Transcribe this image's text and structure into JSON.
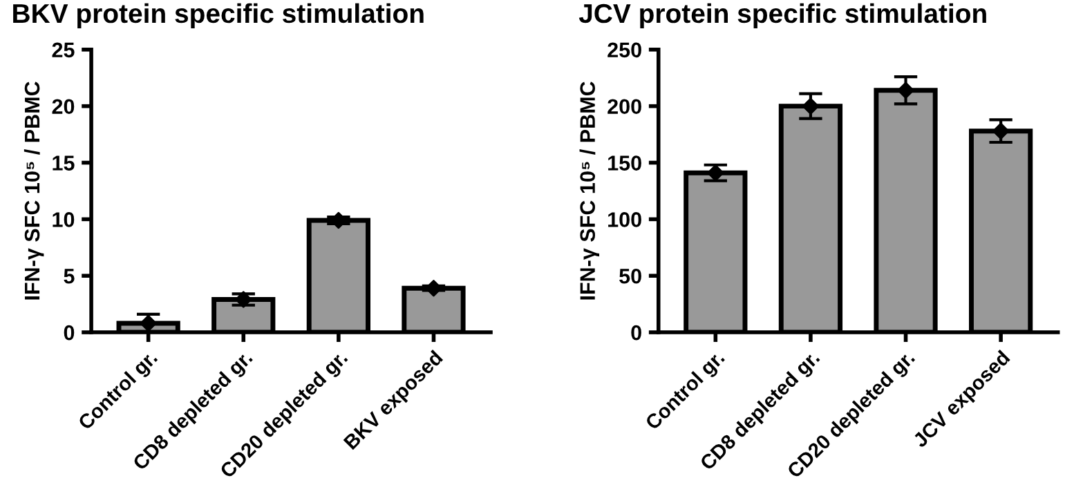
{
  "chart_data": [
    {
      "type": "bar",
      "title": "BKV protein specific stimulation",
      "ylabel": "IFN-γ SFC 10⁵ / PBMC",
      "categories": [
        "Control gr.",
        "CD8 depleted gr.",
        "CD20 depleted gr.",
        "BKV exposed"
      ],
      "series": [
        {
          "color": "#999999",
          "values": [
            0.8,
            2.9,
            9.9,
            3.9
          ],
          "errors": [
            [
              0.8,
              1.6
            ],
            0.5,
            0.3,
            0.2
          ]
        },
        {
          "type": "scatter",
          "color": "#000000",
          "x": [
            "Control gr.",
            "CD8 depleted gr.",
            "CD20 depleted gr.",
            "BKV exposed"
          ],
          "values": [
            0.8,
            2.9,
            9.9,
            3.9
          ]
        }
      ],
      "ylim": [
        0,
        25
      ],
      "yticks": [
        0,
        5,
        10,
        15,
        20,
        25
      ],
      "marker": "diamond",
      "grid": false,
      "legend": false
    },
    {
      "type": "bar",
      "title": "JCV protein specific stimulation",
      "ylabel": "IFN-γ SFC 10⁵ / PBMC",
      "categories": [
        "Control gr.",
        "CD8 depleted gr.",
        "CD20 depleted gr.",
        "JCV exposed"
      ],
      "series": [
        {
          "color": "#999999",
          "values": [
            141,
            200,
            214,
            178
          ],
          "errors": [
            7,
            11,
            12,
            10
          ]
        },
        {
          "type": "scatter",
          "color": "#000000",
          "x": [
            "Control gr.",
            "CD8 depleted gr.",
            "CD20 depleted gr.",
            "JCV exposed"
          ],
          "values": [
            141,
            200,
            214,
            178
          ]
        }
      ],
      "ylim": [
        0,
        250
      ],
      "yticks": [
        0,
        50,
        100,
        150,
        200,
        250
      ],
      "marker": "diamond",
      "grid": false,
      "legend": false
    }
  ]
}
